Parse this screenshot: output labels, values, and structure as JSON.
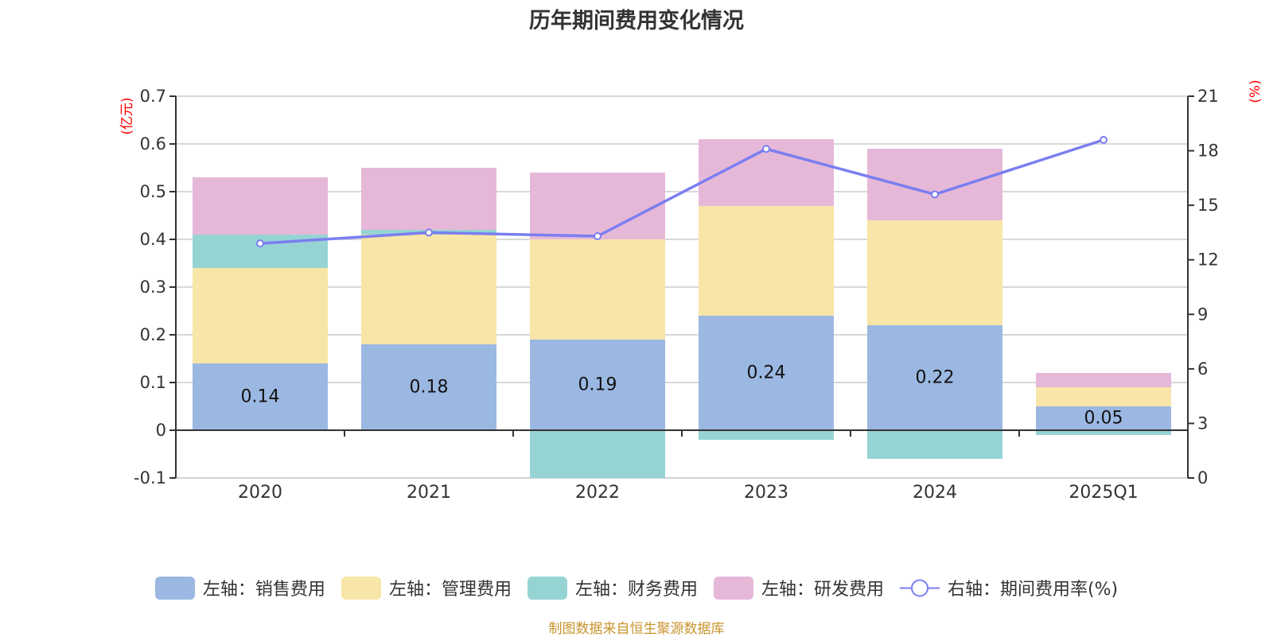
{
  "title": "历年期间费用变化情况",
  "footer": "制图数据来自恒生聚源数据库",
  "colors": {
    "sales": "#9bb8e2",
    "admin": "#f8e6a8",
    "finance": "#96d4d4",
    "rnd": "#e6b8d8",
    "rate": "#7b7ef0",
    "axis_unit": "#ff0000",
    "footer": "#c8942c",
    "grid": "#cccccc",
    "axis": "#333333",
    "text": "#333333"
  },
  "legend": [
    {
      "key": "sales",
      "label": "左轴：销售费用",
      "type": "bar"
    },
    {
      "key": "admin",
      "label": "左轴：管理费用",
      "type": "bar"
    },
    {
      "key": "finance",
      "label": "左轴：财务费用",
      "type": "bar"
    },
    {
      "key": "rnd",
      "label": "左轴：研发费用",
      "type": "bar"
    },
    {
      "key": "rate",
      "label": "右轴：期间费用率(%)",
      "type": "line"
    }
  ],
  "chart_data": {
    "type": "bar",
    "stacked": true,
    "title": "历年期间费用变化情况",
    "categories": [
      "2020",
      "2021",
      "2022",
      "2023",
      "2024",
      "2025Q1"
    ],
    "series": [
      {
        "key": "sales",
        "name": "左轴：销售费用",
        "axis": "left",
        "values": [
          0.14,
          0.18,
          0.19,
          0.24,
          0.22,
          0.05
        ],
        "show_labels": true
      },
      {
        "key": "admin",
        "name": "左轴：管理费用",
        "axis": "left",
        "values": [
          0.2,
          0.23,
          0.21,
          0.23,
          0.22,
          0.04
        ]
      },
      {
        "key": "finance",
        "name": "左轴：财务费用",
        "axis": "left",
        "values": [
          0.07,
          0.01,
          -0.1,
          -0.02,
          -0.06,
          -0.01
        ]
      },
      {
        "key": "rnd",
        "name": "左轴：研发费用",
        "axis": "left",
        "values": [
          0.12,
          0.13,
          0.14,
          0.14,
          0.15,
          0.03
        ]
      },
      {
        "key": "rate",
        "name": "右轴：期间费用率(%)",
        "axis": "right",
        "type": "line",
        "values": [
          12.9,
          13.5,
          13.3,
          18.1,
          15.6,
          18.6
        ]
      }
    ],
    "left_axis": {
      "label": "(亿元)",
      "min": -0.1,
      "max": 0.7,
      "ticks": [
        "-0.1",
        "0",
        "0.1",
        "0.2",
        "0.3",
        "0.4",
        "0.5",
        "0.6",
        "0.7"
      ]
    },
    "right_axis": {
      "label": "(%)",
      "min": 0,
      "max": 21,
      "ticks": [
        "0",
        "3",
        "6",
        "9",
        "12",
        "15",
        "18",
        "21"
      ]
    },
    "grid": true,
    "legend_position": "bottom"
  }
}
